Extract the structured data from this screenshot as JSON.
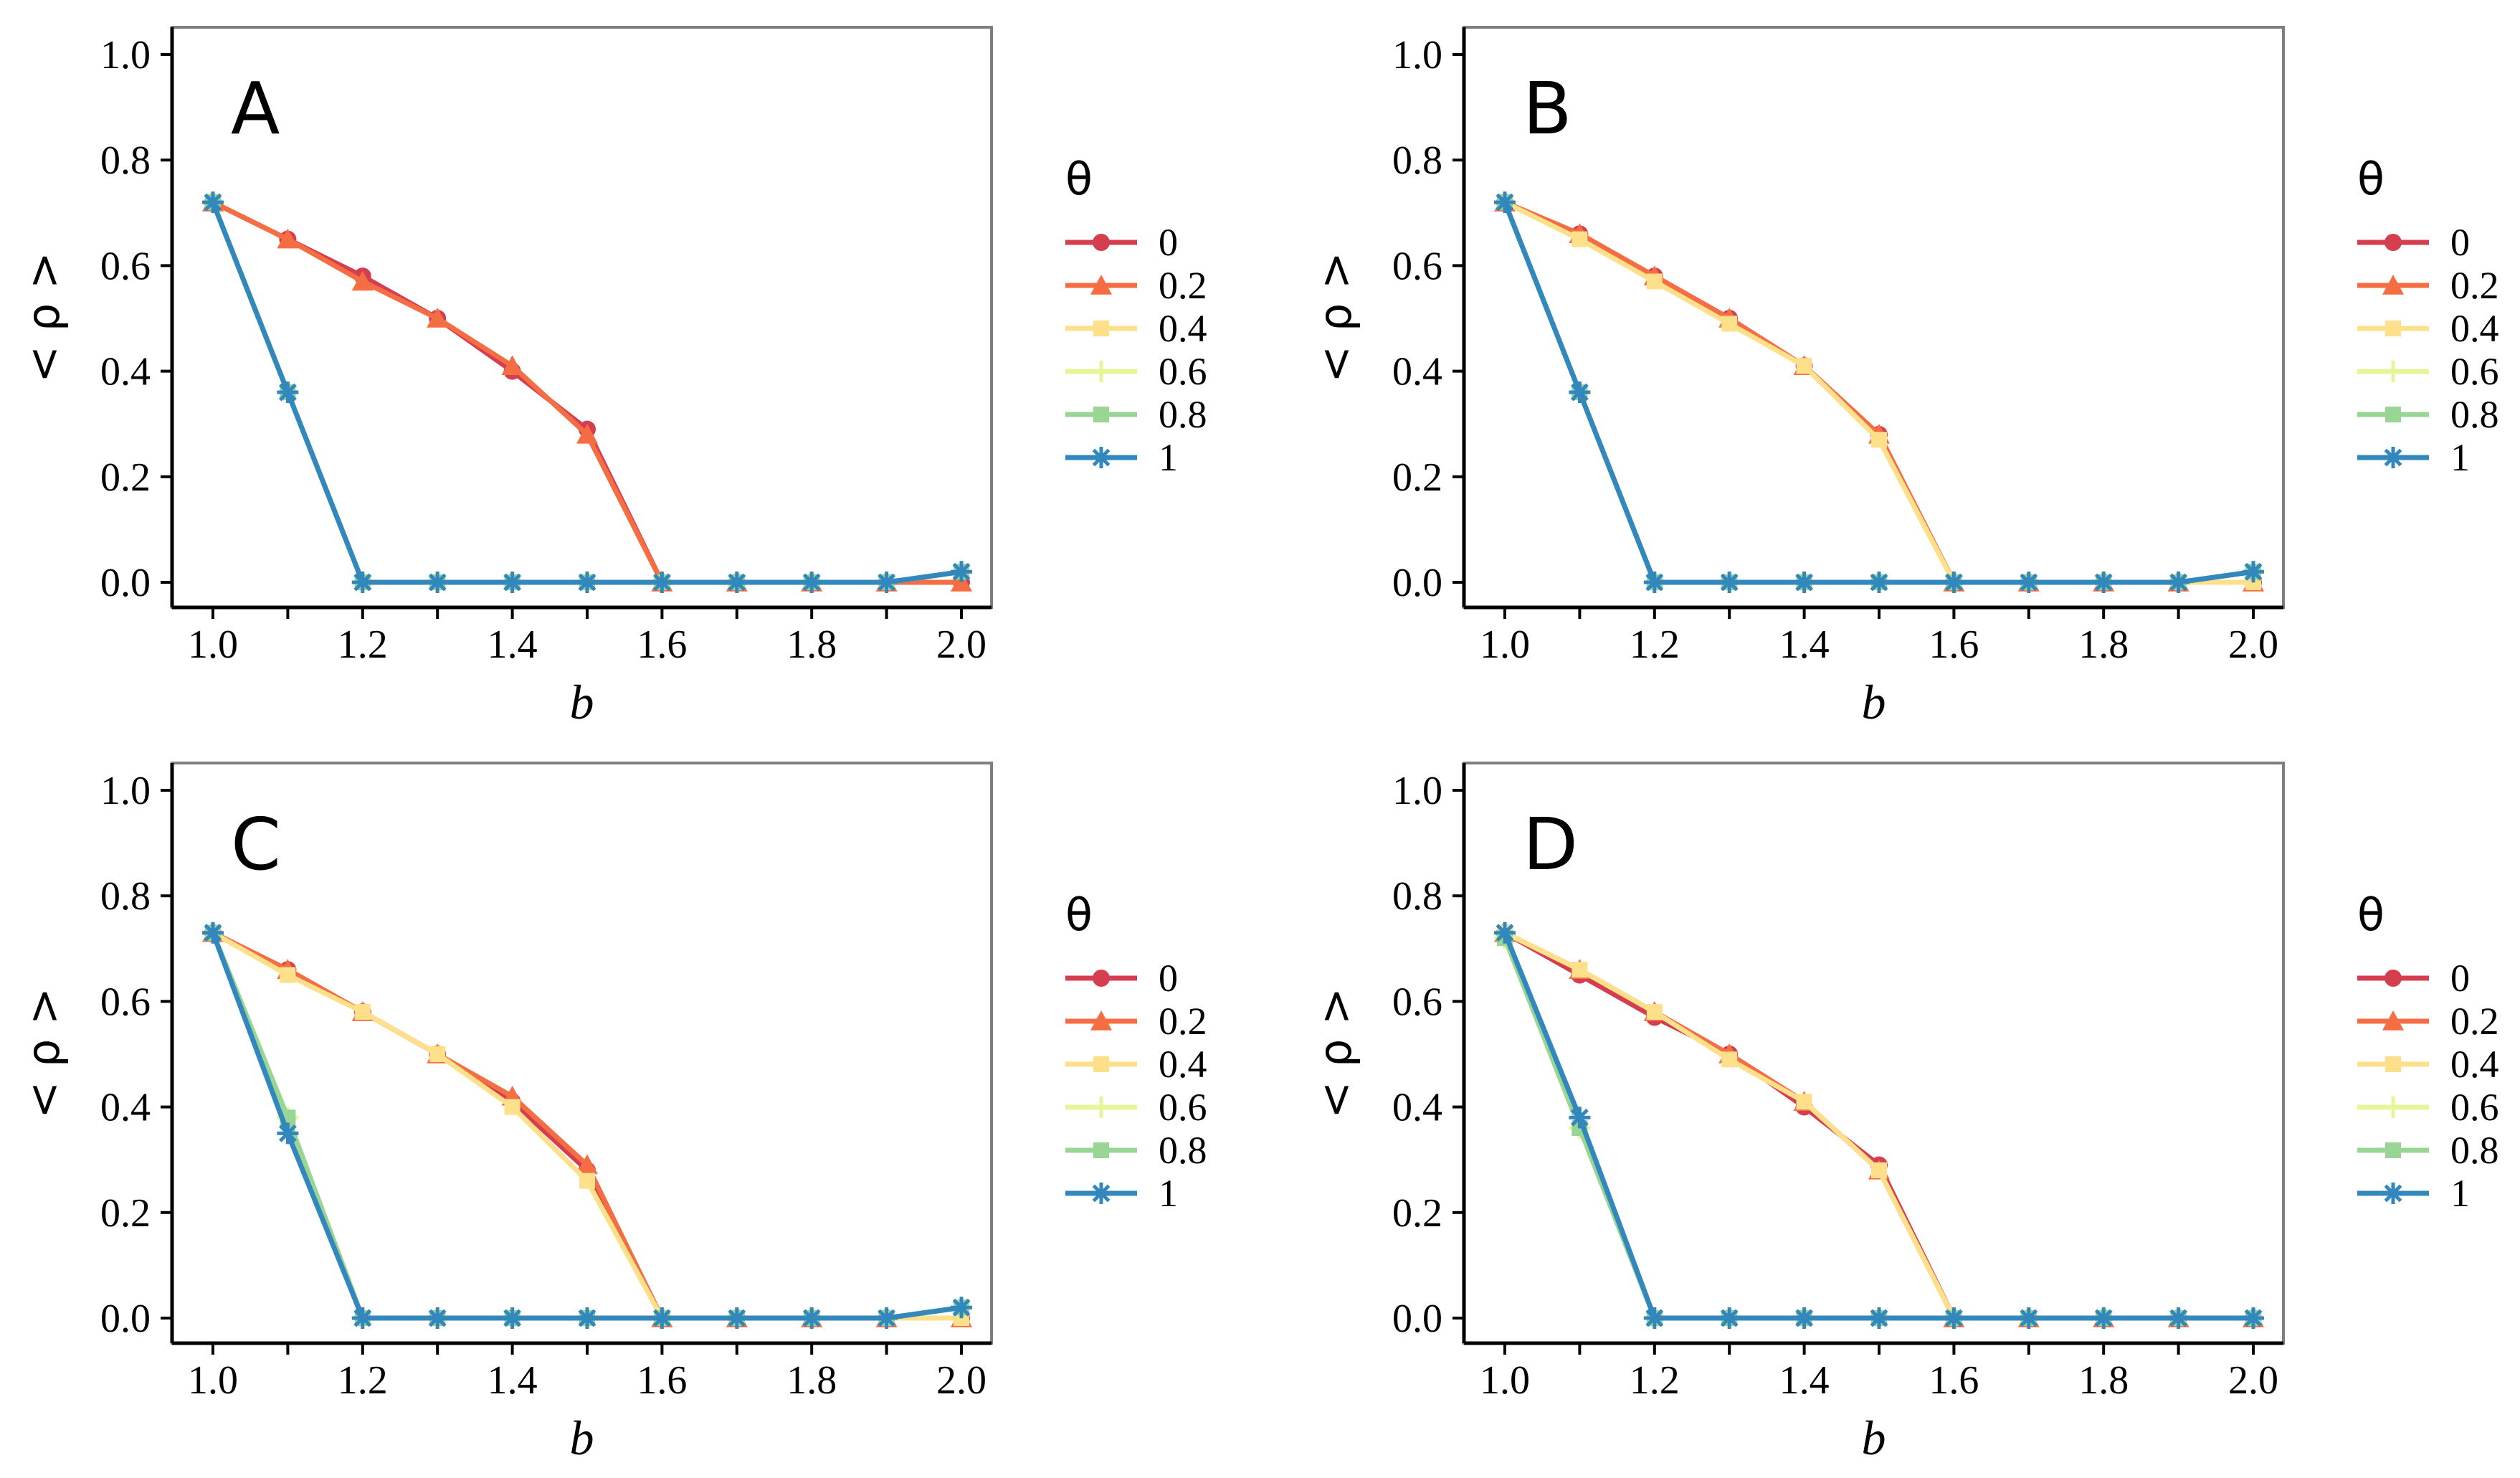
{
  "chart_data": [
    {
      "type": "line",
      "panel": "A",
      "xlabel": "b",
      "ylabel": "< ρ >",
      "xlim": [
        1.0,
        2.0
      ],
      "ylim": [
        0.0,
        1.0
      ],
      "xticks": [
        "1.0",
        "1.2",
        "1.4",
        "1.6",
        "1.8",
        "2.0"
      ],
      "yticks": [
        "0.0",
        "0.2",
        "0.4",
        "0.6",
        "0.8",
        "1.0"
      ],
      "legend_title": "θ",
      "x": [
        1.0,
        1.1,
        1.2,
        1.3,
        1.4,
        1.5,
        1.6,
        1.7,
        1.8,
        1.9,
        2.0
      ],
      "series": [
        {
          "name": "0",
          "values": [
            0.72,
            0.65,
            0.58,
            0.5,
            0.4,
            0.29,
            0.0,
            0.0,
            0.0,
            0.0,
            0.0
          ]
        },
        {
          "name": "0.2",
          "values": [
            0.72,
            0.65,
            0.57,
            0.5,
            0.41,
            0.28,
            0.0,
            0.0,
            0.0,
            0.0,
            0.0
          ]
        },
        {
          "name": "0.4",
          "values": [
            0.72,
            0.36,
            0.0,
            0.0,
            0.0,
            0.0,
            0.0,
            0.0,
            0.0,
            0.0,
            0.02
          ]
        },
        {
          "name": "0.6",
          "values": [
            0.72,
            0.36,
            0.0,
            0.0,
            0.0,
            0.0,
            0.0,
            0.0,
            0.0,
            0.0,
            0.02
          ]
        },
        {
          "name": "0.8",
          "values": [
            0.72,
            0.36,
            0.0,
            0.0,
            0.0,
            0.0,
            0.0,
            0.0,
            0.0,
            0.0,
            0.02
          ]
        },
        {
          "name": "1",
          "values": [
            0.72,
            0.36,
            0.0,
            0.0,
            0.0,
            0.0,
            0.0,
            0.0,
            0.0,
            0.0,
            0.02
          ]
        }
      ]
    },
    {
      "type": "line",
      "panel": "B",
      "xlabel": "b",
      "ylabel": "< ρ >",
      "xlim": [
        1.0,
        2.0
      ],
      "ylim": [
        0.0,
        1.0
      ],
      "xticks": [
        "1.0",
        "1.2",
        "1.4",
        "1.6",
        "1.8",
        "2.0"
      ],
      "yticks": [
        "0.0",
        "0.2",
        "0.4",
        "0.6",
        "0.8",
        "1.0"
      ],
      "legend_title": "θ",
      "x": [
        1.0,
        1.1,
        1.2,
        1.3,
        1.4,
        1.5,
        1.6,
        1.7,
        1.8,
        1.9,
        2.0
      ],
      "series": [
        {
          "name": "0",
          "values": [
            0.72,
            0.66,
            0.58,
            0.5,
            0.41,
            0.28,
            0.0,
            0.0,
            0.0,
            0.0,
            0.0
          ]
        },
        {
          "name": "0.2",
          "values": [
            0.72,
            0.66,
            0.58,
            0.5,
            0.41,
            0.28,
            0.0,
            0.0,
            0.0,
            0.0,
            0.0
          ]
        },
        {
          "name": "0.4",
          "values": [
            0.72,
            0.65,
            0.57,
            0.49,
            0.41,
            0.27,
            0.0,
            0.0,
            0.0,
            0.0,
            0.0
          ]
        },
        {
          "name": "0.6",
          "values": [
            0.72,
            0.36,
            0.0,
            0.0,
            0.0,
            0.0,
            0.0,
            0.0,
            0.0,
            0.0,
            0.02
          ]
        },
        {
          "name": "0.8",
          "values": [
            0.72,
            0.36,
            0.0,
            0.0,
            0.0,
            0.0,
            0.0,
            0.0,
            0.0,
            0.0,
            0.02
          ]
        },
        {
          "name": "1",
          "values": [
            0.72,
            0.36,
            0.0,
            0.0,
            0.0,
            0.0,
            0.0,
            0.0,
            0.0,
            0.0,
            0.02
          ]
        }
      ]
    },
    {
      "type": "line",
      "panel": "C",
      "xlabel": "b",
      "ylabel": "< ρ >",
      "xlim": [
        1.0,
        2.0
      ],
      "ylim": [
        0.0,
        1.0
      ],
      "xticks": [
        "1.0",
        "1.2",
        "1.4",
        "1.6",
        "1.8",
        "2.0"
      ],
      "yticks": [
        "0.0",
        "0.2",
        "0.4",
        "0.6",
        "0.8",
        "1.0"
      ],
      "legend_title": "θ",
      "x": [
        1.0,
        1.1,
        1.2,
        1.3,
        1.4,
        1.5,
        1.6,
        1.7,
        1.8,
        1.9,
        2.0
      ],
      "series": [
        {
          "name": "0",
          "values": [
            0.73,
            0.66,
            0.58,
            0.5,
            0.41,
            0.28,
            0.0,
            0.0,
            0.0,
            0.0,
            0.0
          ]
        },
        {
          "name": "0.2",
          "values": [
            0.73,
            0.66,
            0.58,
            0.5,
            0.42,
            0.29,
            0.0,
            0.0,
            0.0,
            0.0,
            0.0
          ]
        },
        {
          "name": "0.4",
          "values": [
            0.73,
            0.65,
            0.58,
            0.5,
            0.4,
            0.26,
            0.0,
            0.0,
            0.0,
            0.0,
            0.0
          ]
        },
        {
          "name": "0.6",
          "values": [
            0.73,
            0.38,
            0.0,
            0.0,
            0.0,
            0.0,
            0.0,
            0.0,
            0.0,
            0.0,
            0.02
          ]
        },
        {
          "name": "0.8",
          "values": [
            0.73,
            0.38,
            0.0,
            0.0,
            0.0,
            0.0,
            0.0,
            0.0,
            0.0,
            0.0,
            0.02
          ]
        },
        {
          "name": "1",
          "values": [
            0.73,
            0.35,
            0.0,
            0.0,
            0.0,
            0.0,
            0.0,
            0.0,
            0.0,
            0.0,
            0.02
          ]
        }
      ]
    },
    {
      "type": "line",
      "panel": "D",
      "xlabel": "b",
      "ylabel": "< ρ >",
      "xlim": [
        1.0,
        2.0
      ],
      "ylim": [
        0.0,
        1.0
      ],
      "xticks": [
        "1.0",
        "1.2",
        "1.4",
        "1.6",
        "1.8",
        "2.0"
      ],
      "yticks": [
        "0.0",
        "0.2",
        "0.4",
        "0.6",
        "0.8",
        "1.0"
      ],
      "legend_title": "θ",
      "x": [
        1.0,
        1.1,
        1.2,
        1.3,
        1.4,
        1.5,
        1.6,
        1.7,
        1.8,
        1.9,
        2.0
      ],
      "series": [
        {
          "name": "0",
          "values": [
            0.73,
            0.65,
            0.57,
            0.5,
            0.4,
            0.29,
            0.0,
            0.0,
            0.0,
            0.0,
            0.0
          ]
        },
        {
          "name": "0.2",
          "values": [
            0.73,
            0.66,
            0.58,
            0.5,
            0.41,
            0.28,
            0.0,
            0.0,
            0.0,
            0.0,
            0.0
          ]
        },
        {
          "name": "0.4",
          "values": [
            0.73,
            0.66,
            0.58,
            0.49,
            0.41,
            0.28,
            0.0,
            0.0,
            0.0,
            0.0,
            0.0
          ]
        },
        {
          "name": "0.6",
          "values": [
            0.72,
            0.36,
            0.0,
            0.0,
            0.0,
            0.0,
            0.0,
            0.0,
            0.0,
            0.0,
            0.0
          ]
        },
        {
          "name": "0.8",
          "values": [
            0.72,
            0.36,
            0.0,
            0.0,
            0.0,
            0.0,
            0.0,
            0.0,
            0.0,
            0.0,
            0.0
          ]
        },
        {
          "name": "1",
          "values": [
            0.73,
            0.38,
            0.0,
            0.0,
            0.0,
            0.0,
            0.0,
            0.0,
            0.0,
            0.0,
            0.0
          ]
        }
      ]
    }
  ],
  "colors": {
    "0": "#d53e4f",
    "0.2": "#f46d43",
    "0.4": "#fee08b",
    "0.6": "#e6f598",
    "0.8": "#99d594",
    "1": "#3288bd"
  },
  "markers": {
    "0": "circle",
    "0.2": "triangle",
    "0.4": "square",
    "0.6": "plus",
    "0.8": "square-cross",
    "1": "asterisk"
  }
}
